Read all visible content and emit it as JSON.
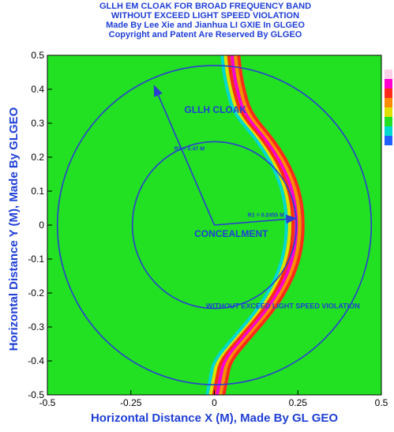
{
  "chart_data": {
    "type": "heatmap",
    "title_lines": [
      "GLLH EM CLOAK FOR BROAD FREQUENCY BAND",
      "WITHOUT EXCEED LIGHT SPEED VIOLATION",
      "Made By Lee Xie and Jianhua LI GXIE In GLGEO",
      "Copyright and Patent Are Reserved By GLGEO"
    ],
    "xlabel": "Horizontal Distance X (M), Made By GL GEO",
    "ylabel": "Horizontal Distance Y (M), Made By GLGEO",
    "xlim": [
      -0.5,
      0.5
    ],
    "ylim": [
      -0.5,
      0.5
    ],
    "xticks": [
      {
        "value": -0.5,
        "label": "-0.5"
      },
      {
        "value": -0.25,
        "label": "-0.25"
      },
      {
        "value": 0,
        "label": "0"
      },
      {
        "value": 0.25,
        "label": "0.25"
      },
      {
        "value": 0.5,
        "label": "0.5"
      }
    ],
    "yticks": [
      {
        "value": 0.5,
        "label": "0.5"
      },
      {
        "value": 0.4,
        "label": "0.4"
      },
      {
        "value": 0.3,
        "label": "0.3"
      },
      {
        "value": 0.2,
        "label": "0.2"
      },
      {
        "value": 0.1,
        "label": "0.1"
      },
      {
        "value": 0,
        "label": "0"
      },
      {
        "value": -0.1,
        "label": "-0.1"
      },
      {
        "value": -0.2,
        "label": "-0.2"
      },
      {
        "value": -0.3,
        "label": "-0.3"
      },
      {
        "value": -0.4,
        "label": "-0.4"
      },
      {
        "value": -0.5,
        "label": "-0.5"
      }
    ],
    "background_color": "#22e022",
    "circles": [
      {
        "name": "outer-circle",
        "r": 0.47,
        "color": "#2a3fd0"
      },
      {
        "name": "inner-circle",
        "r": 0.2455,
        "color": "#2a3fd0"
      }
    ],
    "arrows": [
      {
        "name": "outer-radius-arrow",
        "from": [
          0.0,
          0.0
        ],
        "to": [
          -0.18,
          0.41
        ]
      },
      {
        "name": "inner-radius-arrow",
        "from": [
          0.0,
          0.0
        ],
        "to": [
          0.245,
          0.02
        ]
      }
    ],
    "annotations": [
      {
        "name": "gllh-cloak-label",
        "text": "GLLH CLOAK",
        "x": -0.09,
        "y": 0.33
      },
      {
        "name": "outer-radius-label",
        "text": "R2 = 0.47 M",
        "x": -0.12,
        "y": 0.22
      },
      {
        "name": "inner-radius-label",
        "text": "R1 = 0.2455 M",
        "x": 0.1,
        "y": 0.025
      },
      {
        "name": "concealment-label",
        "text": "CONCEALMENT",
        "x": -0.06,
        "y": -0.035
      },
      {
        "name": "without-violation-label",
        "text": "WITHOUT EXCEED LIGHT SPEED VIOLATION",
        "x": -0.025,
        "y": -0.245
      }
    ],
    "wave_front": {
      "points": [
        [
          0.01,
          -0.5
        ],
        [
          0.02,
          -0.45
        ],
        [
          0.03,
          -0.4
        ],
        [
          0.09,
          -0.33
        ],
        [
          0.16,
          -0.25
        ],
        [
          0.21,
          -0.17
        ],
        [
          0.24,
          -0.09
        ],
        [
          0.25,
          0.0
        ],
        [
          0.24,
          0.09
        ],
        [
          0.21,
          0.17
        ],
        [
          0.16,
          0.25
        ],
        [
          0.09,
          0.33
        ],
        [
          0.07,
          0.4
        ],
        [
          0.06,
          0.45
        ],
        [
          0.055,
          0.5
        ]
      ],
      "bands": [
        {
          "offset": -0.022,
          "color": "#e0e000"
        },
        {
          "offset": -0.012,
          "color": "#ff2a1a"
        },
        {
          "offset": -0.002,
          "color": "#ff00d0"
        },
        {
          "offset": 0.008,
          "color": "#ff8c00"
        },
        {
          "offset": 0.018,
          "color": "#ff2a1a"
        },
        {
          "offset": -0.032,
          "color": "#00d8d0"
        }
      ]
    },
    "colorbar": [
      "#ffd0e8",
      "#ff00d0",
      "#ff2a1a",
      "#ff8c00",
      "#e0e000",
      "#22e022",
      "#00d8d0",
      "#2060ff"
    ],
    "grid": false,
    "legend": "right"
  }
}
